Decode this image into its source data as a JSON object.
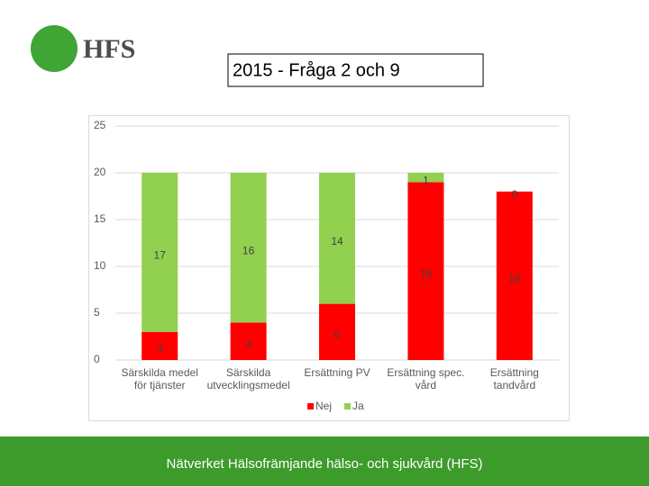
{
  "logo": "HFS",
  "title": "2015 - Fråga 2 och 9",
  "footer": "Nätverket Hälsofrämjande hälso- och sjukvård (HFS)",
  "chart_data": {
    "type": "stacked_bar",
    "categories": [
      "Särskilda medel för tjänster",
      "Särskilda utvecklingsmedel",
      "Ersättning PV",
      "Ersättning spec. vård",
      "Ersättning tandvård"
    ],
    "series": [
      {
        "name": "Nej",
        "color": "#ff0000",
        "values": [
          3,
          4,
          6,
          19,
          18
        ]
      },
      {
        "name": "Ja",
        "color": "#92d050",
        "values": [
          17,
          16,
          14,
          1,
          0
        ]
      }
    ],
    "ylim": [
      0,
      25
    ],
    "yticks": [
      0,
      5,
      10,
      15,
      20,
      25
    ],
    "grid": true,
    "legend": "bottom"
  }
}
